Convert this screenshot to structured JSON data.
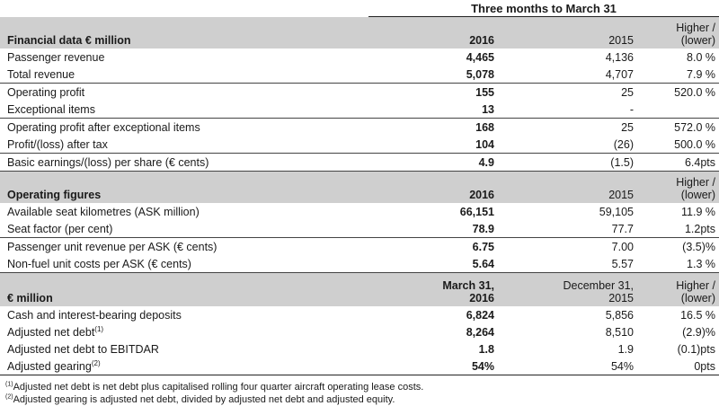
{
  "period_header": "Three months to March 31",
  "section1": {
    "title": "Financial data € million",
    "col_current": "2016",
    "col_previous": "2015",
    "col_change_line1": "Higher /",
    "col_change_line2": "(lower)",
    "rows": [
      {
        "label": "Passenger revenue",
        "current": "4,465",
        "previous": "4,136",
        "change": "8.0 %"
      },
      {
        "label": "Total revenue",
        "current": "5,078",
        "previous": "4,707",
        "change": "7.9 %"
      },
      {
        "label": "Operating profit",
        "current": "155",
        "previous": "25",
        "change": "520.0 %"
      },
      {
        "label": "Exceptional items",
        "current": "13",
        "previous": "-",
        "change": ""
      },
      {
        "label": "Operating profit after exceptional items",
        "current": "168",
        "previous": "25",
        "change": "572.0 %"
      },
      {
        "label": "Profit/(loss) after tax",
        "current": "104",
        "previous": "(26)",
        "change": "500.0 %"
      },
      {
        "label": "Basic earnings/(loss) per share (€ cents)",
        "current": "4.9",
        "previous": "(1.5)",
        "change": "6.4pts"
      }
    ]
  },
  "section2": {
    "title": "Operating figures",
    "col_current": "2016",
    "col_previous": "2015",
    "col_change_line1": "Higher /",
    "col_change_line2": "(lower)",
    "rows": [
      {
        "label": "Available seat kilometres (ASK million)",
        "current": "66,151",
        "previous": "59,105",
        "change": "11.9 %"
      },
      {
        "label": "Seat factor (per cent)",
        "current": "78.9",
        "previous": "77.7",
        "change": "1.2pts"
      },
      {
        "label": "Passenger unit revenue per ASK (€ cents)",
        "current": "6.75",
        "previous": "7.00",
        "change": "(3.5)%"
      },
      {
        "label": "Non-fuel unit costs per ASK (€ cents)",
        "current": "5.64",
        "previous": "5.57",
        "change": "1.3 %"
      }
    ]
  },
  "section3": {
    "title": "€ million",
    "col_current_line1": "March 31,",
    "col_current_line2": "2016",
    "col_previous_line1": "December 31,",
    "col_previous_line2": "2015",
    "col_change_line1": "Higher /",
    "col_change_line2": "(lower)",
    "rows": [
      {
        "label": "Cash and interest-bearing deposits",
        "sup": "",
        "current": "6,824",
        "previous": "5,856",
        "change": "16.5 %"
      },
      {
        "label": "Adjusted net debt",
        "sup": "(1)",
        "current": "8,264",
        "previous": "8,510",
        "change": "(2.9)%"
      },
      {
        "label": "Adjusted net debt to EBITDAR",
        "sup": "",
        "current": "1.8",
        "previous": "1.9",
        "change": "(0.1)pts"
      },
      {
        "label": "Adjusted gearing",
        "sup": "(2)",
        "current": "54%",
        "previous": "54%",
        "change": "0pts"
      }
    ]
  },
  "footnotes": [
    {
      "marker": "(1)",
      "text": "Adjusted net debt is net debt plus capitalised rolling four quarter aircraft operating lease costs."
    },
    {
      "marker": "(2)",
      "text": "Adjusted gearing is adjusted net debt, divided by adjusted net debt and adjusted equity."
    }
  ]
}
